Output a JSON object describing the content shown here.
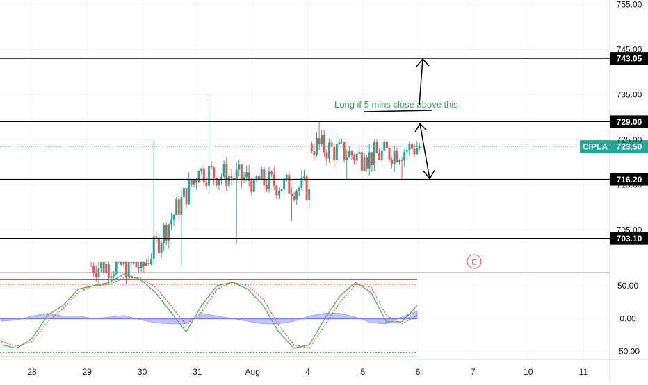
{
  "chart_data": [
    {
      "type": "candlestick",
      "symbol": "CIPLA",
      "last_price": "723.50",
      "y_ticks": [
        "755.00",
        "745.00",
        "735.00",
        "725.00",
        "715.00",
        "705.00"
      ],
      "ylim": [
        695.5,
        756
      ],
      "x_ticks": [
        {
          "label": "28",
          "x": 0
        },
        {
          "label": "29",
          "x": 1
        },
        {
          "label": "30",
          "x": 2
        },
        {
          "label": "31",
          "x": 3
        },
        {
          "label": "Aug",
          "x": 4
        },
        {
          "label": "4",
          "x": 5
        },
        {
          "label": "5",
          "x": 6
        },
        {
          "label": "6",
          "x": 7
        },
        {
          "label": "7",
          "x": 8
        },
        {
          "label": "10",
          "x": 9
        },
        {
          "label": "11",
          "x": 10
        }
      ],
      "levels": [
        {
          "price": 743.05,
          "label": "743.05"
        },
        {
          "price": 729.0,
          "label": "729.00"
        },
        {
          "price": 716.2,
          "label": "716.20"
        },
        {
          "price": 703.1,
          "label": "703.10"
        }
      ],
      "annotation": "Long if 5 mins close above this",
      "event_marker": "E",
      "bull_color": "#26a69a",
      "bear_color": "#ef5350",
      "sessions": [
        {
          "day": "28",
          "open": null,
          "close": null,
          "high": null,
          "low": null
        },
        {
          "day": "29",
          "open": null,
          "close": null,
          "high": null,
          "low": null
        },
        {
          "day": "30",
          "open": 697,
          "close": 697,
          "high": 698,
          "low": 693
        },
        {
          "day": "31",
          "open": 697,
          "close": 718,
          "high": 725,
          "low": 697
        },
        {
          "day": "Aug",
          "open": 718,
          "close": 716,
          "high": 734,
          "low": 702
        },
        {
          "day": "4",
          "open": 716,
          "close": 714,
          "high": 719,
          "low": 707
        },
        {
          "day": "5",
          "open": 724,
          "close": 721,
          "high": 729,
          "low": 716
        },
        {
          "day": "6",
          "open": 721,
          "close": 723.5,
          "high": 725,
          "low": 716
        }
      ]
    },
    {
      "type": "line",
      "name": "oscillator",
      "y_ticks": [
        "50.00",
        "0.00",
        "-50.00"
      ],
      "ylim": [
        -62,
        70
      ],
      "bands": [
        60,
        52,
        -52,
        -58
      ],
      "series": [
        {
          "name": "",
          "color": "#4caf50",
          "values": [
            -40,
            -45,
            -30,
            5,
            20,
            45,
            50,
            55,
            68,
            60,
            40,
            10,
            -20,
            20,
            50,
            55,
            45,
            20,
            -20,
            -45,
            -40,
            0,
            35,
            55,
            40,
            -5,
            -5,
            20
          ]
        },
        {
          "name": "",
          "color": "#f44336",
          "values": [
            -35,
            -42,
            -35,
            -5,
            15,
            40,
            50,
            52,
            62,
            62,
            48,
            20,
            -10,
            10,
            45,
            55,
            50,
            30,
            -10,
            -40,
            -45,
            -10,
            25,
            52,
            48,
            5,
            -8,
            5
          ]
        }
      ]
    }
  ]
}
